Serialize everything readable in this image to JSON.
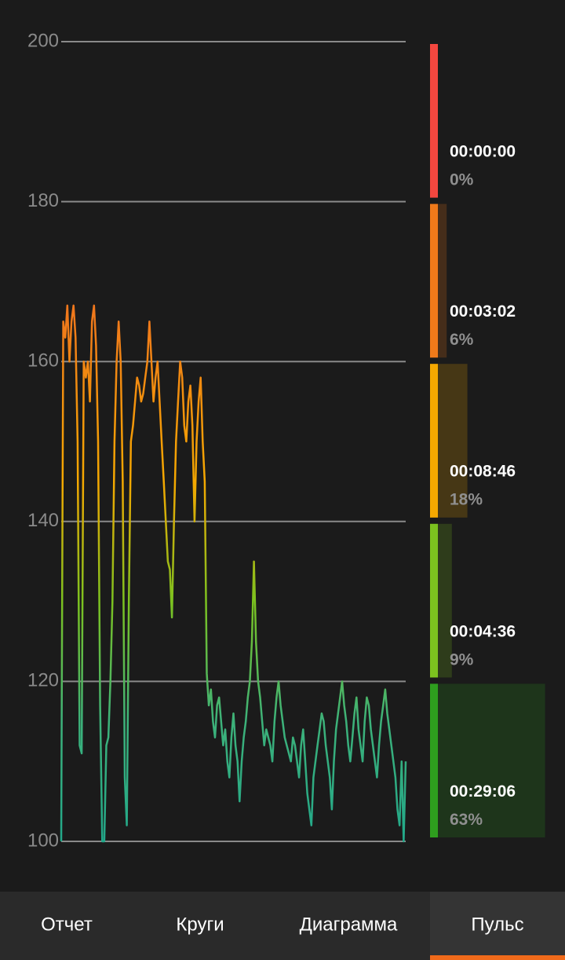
{
  "chart_data": [
    {
      "type": "line",
      "values": [
        100,
        165,
        163,
        167,
        160,
        165,
        167,
        163,
        150,
        112,
        111,
        160,
        158,
        160,
        155,
        165,
        167,
        162,
        150,
        117,
        100,
        100,
        112,
        113,
        120,
        130,
        150,
        160,
        165,
        160,
        145,
        108,
        102,
        130,
        150,
        152,
        155,
        158,
        157,
        155,
        156,
        158,
        160,
        165,
        160,
        155,
        158,
        160,
        155,
        150,
        145,
        140,
        135,
        134,
        128,
        140,
        150,
        155,
        160,
        158,
        152,
        150,
        155,
        157,
        152,
        140,
        150,
        155,
        158,
        150,
        145,
        121,
        117,
        119,
        115,
        113,
        117,
        118,
        115,
        112,
        114,
        110,
        108,
        113,
        116,
        112,
        110,
        105,
        110,
        113,
        115,
        118,
        120,
        125,
        135,
        125,
        120,
        118,
        115,
        112,
        114,
        113,
        112,
        110,
        115,
        118,
        120,
        117,
        115,
        113,
        112,
        111,
        110,
        113,
        112,
        110,
        108,
        112,
        114,
        110,
        106,
        104,
        102,
        108,
        110,
        112,
        114,
        116,
        115,
        112,
        110,
        108,
        104,
        110,
        114,
        116,
        118,
        120,
        117,
        115,
        112,
        110,
        113,
        116,
        118,
        114,
        112,
        110,
        115,
        118,
        117,
        114,
        112,
        110,
        108,
        112,
        115,
        117,
        119,
        116,
        114,
        112,
        110,
        108,
        104,
        102,
        110,
        100,
        110
      ],
      "ylim": [
        100,
        200
      ],
      "yticks": [
        100,
        120,
        140,
        160,
        180,
        200
      ],
      "grid": true
    },
    {
      "type": "zones",
      "times": [
        "00:00:00",
        "00:03:02",
        "00:08:46",
        "00:04:36",
        "00:29:06"
      ],
      "values": [
        0,
        6,
        18,
        9,
        63
      ],
      "value_labels": [
        "0%",
        "6%",
        "18%",
        "9%",
        "63%"
      ],
      "colors": [
        "#f4473f",
        "#f07a1a",
        "#f5a800",
        "#7cc21f",
        "#2e9e1e"
      ]
    }
  ],
  "tabs": {
    "items": [
      "Отчет",
      "Круги",
      "Диаграмма",
      "Пульс"
    ],
    "selected": 3
  }
}
